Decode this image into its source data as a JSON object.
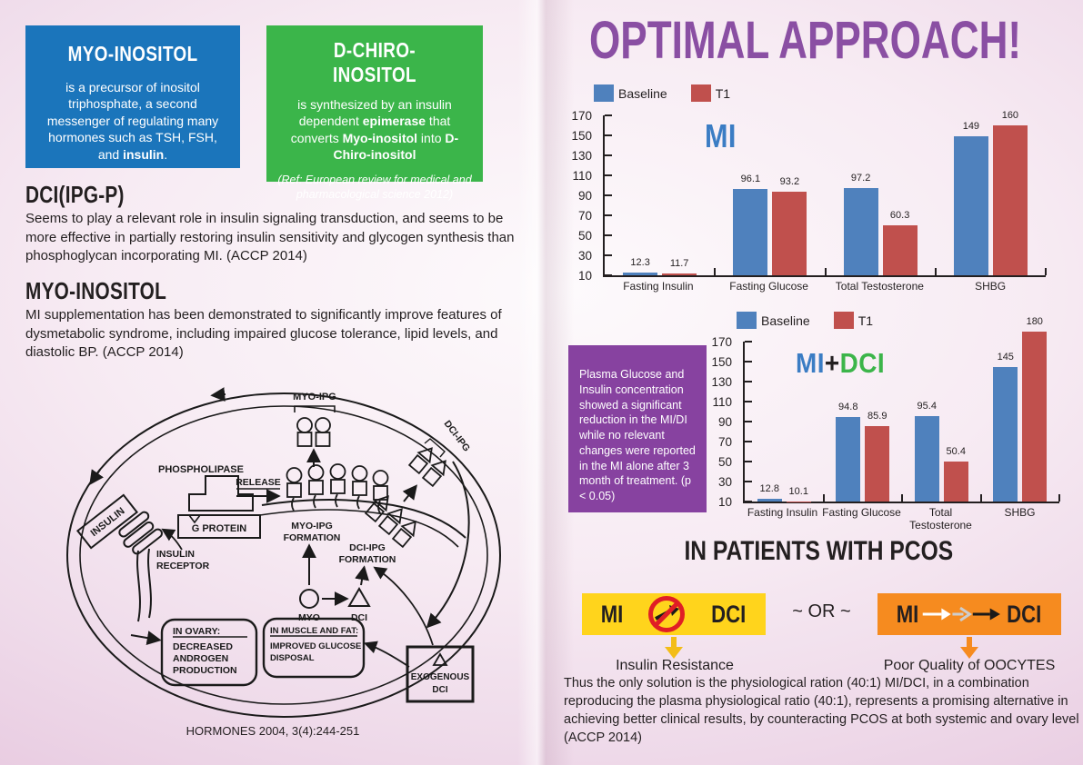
{
  "colors": {
    "blue_box": "#1b75bb",
    "green_box": "#3bb54a",
    "title_purple": "#8a4fa3",
    "purple_box": "#8742a0",
    "bar_blue": "#4f81bd",
    "bar_red": "#c0504d",
    "yellow_box": "#ffd41c",
    "orange_box": "#f68b1f",
    "mi_blue": "#3b7dc4",
    "dci_green": "#3cb54a",
    "prohibition_red": "#e01e25"
  },
  "left": {
    "blue_box": {
      "title": "MYO-INOSITOL",
      "body_1": "is a precursor of inositol triphosphate, a second messenger of regulating many hormones such as TSH, FSH, and ",
      "body_bold": "insulin",
      "body_2": "."
    },
    "green_box": {
      "title": "D-CHIRO-INOSITOL",
      "body_1": "is synthesized by an insulin dependent ",
      "body_b1": "epimerase",
      "body_2": " that converts ",
      "body_b2": "Myo-inositol",
      "body_3": " into ",
      "body_b3": "D-Chiro-inositol",
      "ref": "(Ref: European review for medical and pharmacological science 2012)"
    },
    "dci_section": {
      "heading": "DCI(IPG-P)",
      "body": "Seems to play a relevant role in insulin signaling transduction, and seems to be more effective in partially restoring insulin sensitivity and glycogen synthesis than phosphoglycan incorporating MI. (ACCP 2014)"
    },
    "mi_section": {
      "heading": "MYO-INOSITOL",
      "body": "MI supplementation has been demonstrated to significantly improve features of dysmetabolic syndrome, including impaired glucose tolerance, lipid levels, and diastolic BP. (ACCP 2014)"
    },
    "diagram": {
      "caption": "HORMONES 2004, 3(4):244-251",
      "labels": {
        "myo_ipg": "MYO-IPG",
        "phospholipase": "PHOSPHOLIPASE",
        "release": "RELEASE",
        "g_protein": "G PROTEIN",
        "insulin": "INSULIN",
        "receptor_line1": "INSULIN",
        "receptor_line2": "RECEPTOR",
        "myo_formation_1": "MYO-IPG",
        "myo_formation_2": "FORMATION",
        "dci_formation_1": "DCI-IPG",
        "dci_formation_2": "FORMATION",
        "dci_ipg": "DCI-IPG",
        "myo": "MYO",
        "dci": "DCI",
        "ovary_title": "IN OVARY:",
        "ovary_1": "DECREASED",
        "ovary_2": "ANDROGEN",
        "ovary_3": "PRODUCTION",
        "muscle_title": "IN MUSCLE AND FAT:",
        "muscle_1": "IMPROVED GLUCOSE",
        "muscle_2": "DISPOSAL",
        "exo_1": "EXOGENOUS",
        "exo_2": "DCI"
      }
    }
  },
  "right": {
    "title": "OPTIMAL APPROACH!",
    "purple_note": "Plasma Glucose and Insulin concentration showed a significant reduction in the MI/DI while no relevant changes were reported in the MI alone after 3 month of treatment. (p < 0.05)",
    "pcos": {
      "heading": "IN PATIENTS WITH PCOS",
      "left_mi": "MI",
      "left_dci": "DCI",
      "or_text": "~ OR ~",
      "right_mi": "MI",
      "right_dci": "DCI",
      "left_caption": "Insulin Resistance",
      "right_caption": "Poor Quality of OOCYTES"
    },
    "footer": "Thus the only solution is the physiological ration (40:1)  MI/DCI, in a combination reproducing the plasma physiological ratio (40:1), represents a promising alternative in achieving better clinical results, by counteracting PCOS at both systemic and ovary level (ACCP 2014)"
  },
  "chart_data": [
    {
      "type": "bar",
      "title": "MI",
      "legend_position": "top-left",
      "categories": [
        "Fasting Insulin",
        "Fasting Glucose",
        "Total Testosterone",
        "SHBG"
      ],
      "series": [
        {
          "name": "Baseline",
          "color": "#4f81bd",
          "values": [
            "12.3",
            "96.1",
            "97.2",
            "149"
          ]
        },
        {
          "name": "T1",
          "color": "#c0504d",
          "values": [
            "11.7",
            "93.2",
            "60.3",
            "160"
          ]
        }
      ],
      "ylim": [
        10,
        170
      ],
      "yticks": [
        10,
        30,
        50,
        70,
        90,
        110,
        130,
        150,
        170
      ],
      "grid": false
    },
    {
      "type": "bar",
      "title_parts": [
        {
          "text": "MI"
        },
        {
          "text": "+"
        },
        {
          "text": "DCI"
        }
      ],
      "legend_position": "top-center",
      "categories": [
        "Fasting Insulin",
        "Fasting Glucose",
        "Total Testosterone",
        "SHBG"
      ],
      "series": [
        {
          "name": "Baseline",
          "color": "#4f81bd",
          "values": [
            "12.8",
            "94.8",
            "95.4",
            "145"
          ]
        },
        {
          "name": "T1",
          "color": "#c0504d",
          "values": [
            "10.1",
            "85.9",
            "50.4",
            "180"
          ]
        }
      ],
      "ylim": [
        10,
        170
      ],
      "yticks": [
        10,
        30,
        50,
        70,
        90,
        110,
        130,
        150,
        170
      ],
      "grid": false
    }
  ]
}
